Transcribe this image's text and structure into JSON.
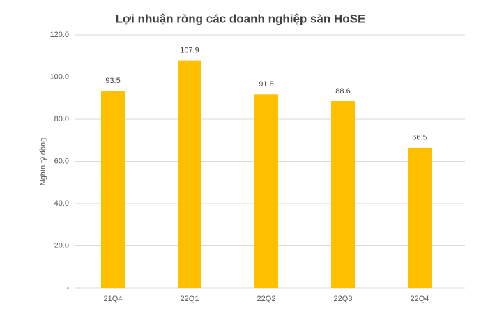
{
  "chart_data": {
    "type": "bar",
    "title": "Lợi nhuận ròng các doanh nghiệp sàn HoSE",
    "y_label": "Nghìn tỷ đồng",
    "categories": [
      "21Q4",
      "22Q1",
      "22Q2",
      "22Q3",
      "22Q4"
    ],
    "values": [
      93.5,
      107.9,
      91.8,
      88.6,
      66.5
    ],
    "color": "#ffc000",
    "ylim": [
      0,
      120
    ],
    "yticks": [
      {
        "value": 0,
        "label": "-"
      },
      {
        "value": 20,
        "label": "20.0"
      },
      {
        "value": 40,
        "label": "40.0"
      },
      {
        "value": 60,
        "label": "60.0"
      },
      {
        "value": 80,
        "label": "80.0"
      },
      {
        "value": 100,
        "label": "100.0"
      },
      {
        "value": 120,
        "label": "120.0"
      }
    ],
    "grid": true
  }
}
